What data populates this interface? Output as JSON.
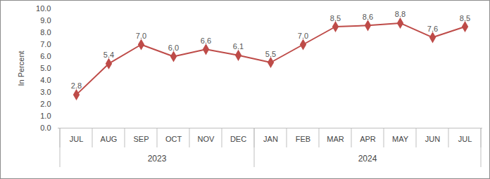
{
  "chart_data": {
    "type": "line",
    "y_label": "In Percent",
    "categories": [
      "JUL",
      "AUG",
      "SEP",
      "OCT",
      "NOV",
      "DEC",
      "JAN",
      "FEB",
      "MAR",
      "APR",
      "MAY",
      "JUN",
      "JUL"
    ],
    "category_groups": [
      "2023",
      "2023",
      "2023",
      "2023",
      "2023",
      "2023",
      "2024",
      "2024",
      "2024",
      "2024",
      "2024",
      "2024",
      "2024"
    ],
    "values": [
      2.8,
      5.4,
      7.0,
      6.0,
      6.6,
      6.1,
      5.5,
      7.0,
      8.5,
      8.6,
      8.8,
      7.6,
      8.5
    ],
    "value_labels": [
      "2.8",
      "5.4",
      "7.0",
      "6.0",
      "6.6",
      "6.1",
      "5.5",
      "7.0",
      "8.5",
      "8.6",
      "8.8",
      "7.6",
      "8.5"
    ],
    "color": "#be4b48",
    "marker": "diamond",
    "data_labels": true,
    "grid": false,
    "ylim": [
      0,
      10
    ],
    "yticks": [
      {
        "value": 0,
        "label": "0.0"
      },
      {
        "value": 1,
        "label": "1.0"
      },
      {
        "value": 2,
        "label": "2.0"
      },
      {
        "value": 3,
        "label": "3.0"
      },
      {
        "value": 4,
        "label": "4.0"
      },
      {
        "value": 5,
        "label": "5.0"
      },
      {
        "value": 6,
        "label": "6.0"
      },
      {
        "value": 7,
        "label": "7.0"
      },
      {
        "value": 8,
        "label": "8.0"
      },
      {
        "value": 9,
        "label": "9.0"
      },
      {
        "value": 10,
        "label": "10.0"
      }
    ]
  }
}
